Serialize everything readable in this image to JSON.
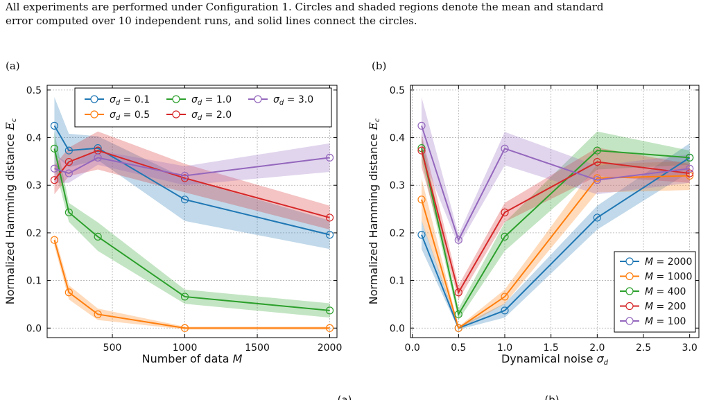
{
  "caption": {
    "line1": "All experiments are performed under Configuration 1. Circles and shaded regions denote the mean and standard",
    "line2": "error computed over 10 independent runs, and solid lines connect the circles."
  },
  "panel_labels": {
    "a": "(a)",
    "b": "(b)"
  },
  "footer_marks": [
    "(a)",
    "(b)"
  ],
  "chart_data": [
    {
      "type": "line",
      "panel": "(a)",
      "xlabel": "Number of data M",
      "ylabel": "Normalized Hamming distance E_c",
      "xlim": [
        50,
        2050
      ],
      "ylim": [
        -0.02,
        0.51
      ],
      "xticks": [
        500,
        1000,
        1500,
        2000
      ],
      "xtick_labels": [
        "500",
        "1000",
        "1500",
        "2000"
      ],
      "yticks": [
        0.0,
        0.1,
        0.2,
        0.3,
        0.4,
        0.5
      ],
      "ytick_labels": [
        "0.0",
        "0.1",
        "0.2",
        "0.3",
        "0.4",
        "0.5"
      ],
      "grid": true,
      "legend": "top, 3 columns",
      "x": [
        100,
        200,
        400,
        1000,
        2000
      ],
      "series": [
        {
          "name": "σd = 0.1",
          "color": "#1f77b4",
          "values": [
            0.425,
            0.373,
            0.378,
            0.27,
            0.196
          ],
          "stderr": [
            0.06,
            0.035,
            0.025,
            0.045,
            0.03
          ]
        },
        {
          "name": "σd = 0.5",
          "color": "#ff7f0e",
          "values": [
            0.185,
            0.075,
            0.029,
            0.0,
            0.0
          ],
          "stderr": [
            0.012,
            0.015,
            0.012,
            0.003,
            0.003
          ]
        },
        {
          "name": "σd = 1.0",
          "color": "#2ca02c",
          "values": [
            0.377,
            0.243,
            0.192,
            0.066,
            0.037
          ],
          "stderr": [
            0.035,
            0.02,
            0.03,
            0.015,
            0.015
          ]
        },
        {
          "name": "σd = 2.0",
          "color": "#d62728",
          "values": [
            0.311,
            0.349,
            0.373,
            0.315,
            0.232
          ],
          "stderr": [
            0.03,
            0.03,
            0.04,
            0.03,
            0.025
          ]
        },
        {
          "name": "σd = 3.0",
          "color": "#9467bd",
          "values": [
            0.335,
            0.325,
            0.358,
            0.32,
            0.358
          ],
          "stderr": [
            0.03,
            0.02,
            0.015,
            0.02,
            0.03
          ]
        }
      ]
    },
    {
      "type": "line",
      "panel": "(b)",
      "xlabel": "Dynamical noise σd",
      "ylabel": "Normalized Hamming distance E_c",
      "xlim": [
        -0.02,
        3.1
      ],
      "ylim": [
        -0.02,
        0.51
      ],
      "xticks": [
        0.0,
        0.5,
        1.0,
        1.5,
        2.0,
        2.5,
        3.0
      ],
      "xtick_labels": [
        "0.0",
        "0.5",
        "1.0",
        "1.5",
        "2.0",
        "2.5",
        "3.0"
      ],
      "yticks": [
        0.0,
        0.1,
        0.2,
        0.3,
        0.4,
        0.5
      ],
      "ytick_labels": [
        "0.0",
        "0.1",
        "0.2",
        "0.3",
        "0.4",
        "0.5"
      ],
      "grid": true,
      "legend": "bottom-right",
      "x": [
        0.1,
        0.5,
        1.0,
        2.0,
        3.0
      ],
      "series": [
        {
          "name": "M = 2000",
          "color": "#1f77b4",
          "values": [
            0.196,
            0.0,
            0.037,
            0.232,
            0.358
          ],
          "stderr": [
            0.03,
            0.003,
            0.015,
            0.025,
            0.03
          ]
        },
        {
          "name": "M = 1000",
          "color": "#ff7f0e",
          "values": [
            0.27,
            0.0,
            0.066,
            0.315,
            0.32
          ],
          "stderr": [
            0.045,
            0.003,
            0.015,
            0.03,
            0.03
          ]
        },
        {
          "name": "M = 400",
          "color": "#2ca02c",
          "values": [
            0.378,
            0.029,
            0.192,
            0.373,
            0.358
          ],
          "stderr": [
            0.025,
            0.012,
            0.03,
            0.04,
            0.015
          ]
        },
        {
          "name": "M = 200",
          "color": "#d62728",
          "values": [
            0.373,
            0.075,
            0.243,
            0.349,
            0.325
          ],
          "stderr": [
            0.035,
            0.015,
            0.02,
            0.03,
            0.02
          ]
        },
        {
          "name": "M = 100",
          "color": "#9467bd",
          "values": [
            0.425,
            0.185,
            0.377,
            0.311,
            0.335
          ],
          "stderr": [
            0.06,
            0.012,
            0.035,
            0.03,
            0.03
          ]
        }
      ]
    }
  ]
}
